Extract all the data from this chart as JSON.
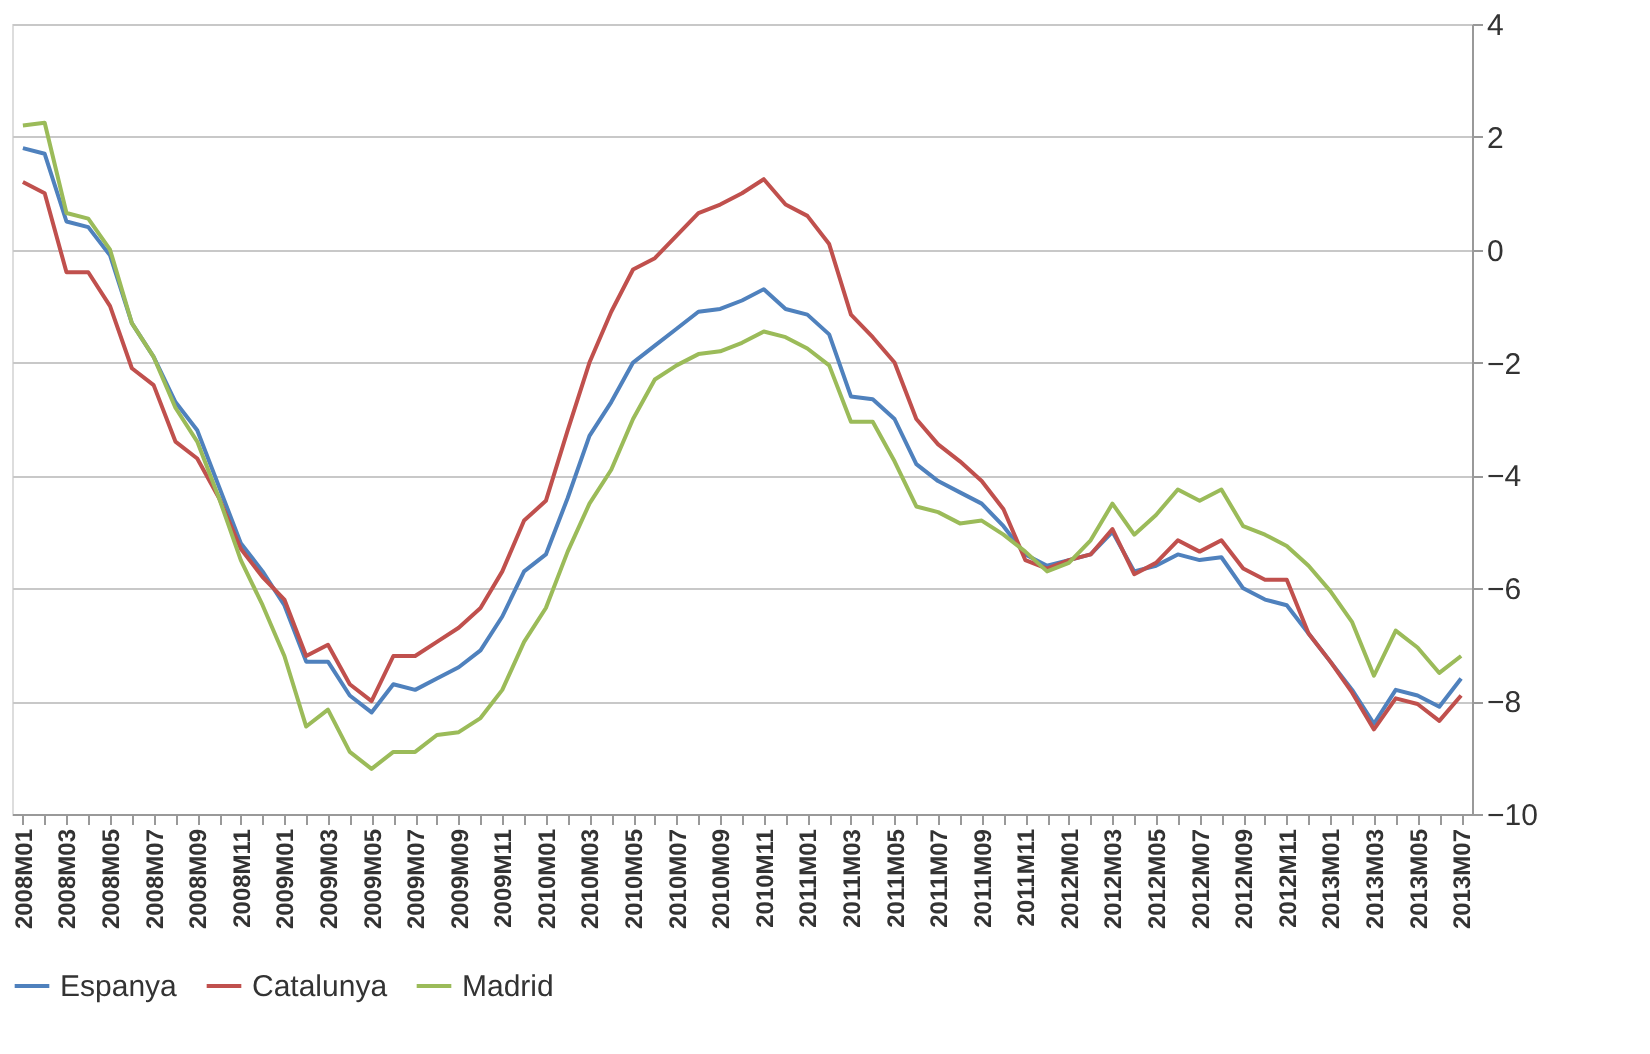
{
  "chart_data": {
    "type": "line",
    "categories": [
      "2008M01",
      null,
      "2008M03",
      null,
      "2008M05",
      null,
      "2008M07",
      null,
      "2008M09",
      null,
      "2008M11",
      null,
      "2009M01",
      null,
      "2009M03",
      null,
      "2009M05",
      null,
      "2009M07",
      null,
      "2009M09",
      null,
      "2009M11",
      null,
      "2010M01",
      null,
      "2010M03",
      null,
      "2010M05",
      null,
      "2010M07",
      null,
      "2010M09",
      null,
      "2010M11",
      null,
      "2011M01",
      null,
      "2011M03",
      null,
      "2011M05",
      null,
      "2011M07",
      null,
      "2011M09",
      null,
      "2011M11",
      null,
      "2012M01",
      null,
      "2012M03",
      null,
      "2012M05",
      null,
      "2012M07",
      null,
      "2012M09",
      null,
      "2012M11",
      null,
      "2013M01",
      null,
      "2013M03",
      null,
      "2013M05",
      null,
      "2013M07"
    ],
    "series": [
      {
        "name": "Espanya",
        "color": "#4f81bd",
        "values": [
          1.8,
          1.7,
          0.5,
          0.4,
          -0.1,
          -1.3,
          -1.9,
          -2.7,
          -3.2,
          -4.2,
          -5.2,
          -5.7,
          -6.3,
          -7.3,
          -7.3,
          -7.9,
          -8.2,
          -7.7,
          -7.8,
          -7.6,
          -7.4,
          -7.1,
          -6.5,
          -5.7,
          -5.4,
          -4.4,
          -3.3,
          -2.7,
          -2.0,
          -1.7,
          -1.4,
          -1.1,
          -1.05,
          -0.9,
          -0.7,
          -1.05,
          -1.15,
          -1.5,
          -2.6,
          -2.65,
          -3.0,
          -3.8,
          -4.1,
          -4.3,
          -4.5,
          -4.9,
          -5.4,
          -5.6,
          -5.5,
          -5.4,
          -5.0,
          -5.7,
          -5.6,
          -5.4,
          -5.5,
          -5.45,
          -6.0,
          -6.2,
          -6.3,
          -6.8,
          -7.3,
          -7.8,
          -8.4,
          -7.8,
          -7.9,
          -8.1,
          -7.6
        ]
      },
      {
        "name": "Catalunya",
        "color": "#c0504d",
        "values": [
          1.2,
          1.0,
          -0.4,
          -0.4,
          -1.0,
          -2.1,
          -2.4,
          -3.4,
          -3.7,
          -4.4,
          -5.3,
          -5.8,
          -6.2,
          -7.2,
          -7.0,
          -7.7,
          -8.0,
          -7.2,
          -7.2,
          -6.95,
          -6.7,
          -6.35,
          -5.7,
          -4.8,
          -4.45,
          -3.2,
          -2.0,
          -1.1,
          -0.35,
          -0.15,
          0.25,
          0.65,
          0.8,
          1.0,
          1.25,
          0.8,
          0.6,
          0.1,
          -1.15,
          -1.55,
          -2.0,
          -3.0,
          -3.45,
          -3.75,
          -4.1,
          -4.6,
          -5.5,
          -5.65,
          -5.5,
          -5.4,
          -4.95,
          -5.75,
          -5.55,
          -5.15,
          -5.35,
          -5.15,
          -5.65,
          -5.85,
          -5.85,
          -6.8,
          -7.3,
          -7.85,
          -8.5,
          -7.95,
          -8.05,
          -8.35,
          -7.9
        ]
      },
      {
        "name": "Madrid",
        "color": "#9bbb59",
        "values": [
          2.2,
          2.25,
          0.65,
          0.55,
          0.0,
          -1.3,
          -1.9,
          -2.8,
          -3.4,
          -4.4,
          -5.5,
          -6.3,
          -7.2,
          -8.45,
          -8.15,
          -8.9,
          -9.2,
          -8.9,
          -8.9,
          -8.6,
          -8.55,
          -8.3,
          -7.8,
          -6.95,
          -6.35,
          -5.35,
          -4.5,
          -3.9,
          -3.0,
          -2.3,
          -2.05,
          -1.85,
          -1.8,
          -1.65,
          -1.45,
          -1.55,
          -1.75,
          -2.05,
          -3.05,
          -3.05,
          -3.75,
          -4.55,
          -4.65,
          -4.85,
          -4.8,
          -5.05,
          -5.35,
          -5.7,
          -5.55,
          -5.15,
          -4.5,
          -5.05,
          -4.7,
          -4.25,
          -4.45,
          -4.25,
          -4.9,
          -5.05,
          -5.25,
          -5.6,
          -6.05,
          -6.6,
          -7.55,
          -6.75,
          -7.05,
          -7.5,
          -7.2
        ]
      }
    ],
    "ylim": [
      -10,
      4
    ],
    "yticks": [
      -10,
      -8,
      -6,
      -4,
      -2,
      0,
      2,
      4
    ],
    "grid": "y",
    "legend": "bottom",
    "line_style": "solid",
    "marker": "none"
  }
}
